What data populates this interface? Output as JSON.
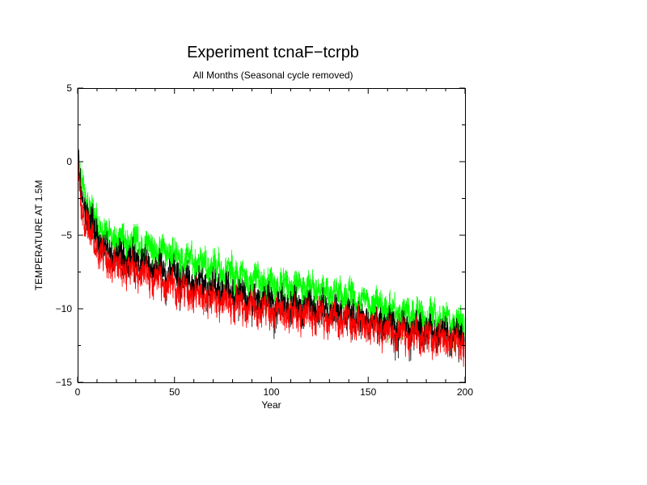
{
  "chart_data": {
    "type": "line",
    "title": "Experiment tcnaF−tcrpb",
    "subtitle": "All Months (Seasonal cycle removed)",
    "xlabel": "Year",
    "ylabel": "TEMPERATURE AT 1.5M",
    "xlim": [
      0,
      200
    ],
    "ylim": [
      -15,
      5
    ],
    "xticks": [
      0,
      50,
      100,
      150,
      200
    ],
    "yticks": [
      5,
      0,
      -5,
      -10,
      -15
    ],
    "grid": false,
    "legend": "none",
    "series": [
      {
        "color": "#00ff00",
        "x": [
          0,
          2,
          5,
          10,
          15,
          20,
          30,
          40,
          50,
          60,
          70,
          80,
          90,
          100,
          110,
          120,
          130,
          140,
          150,
          160,
          170,
          180,
          190,
          200
        ],
        "values": [
          0.3,
          -1.5,
          -2.8,
          -4.0,
          -5.0,
          -5.3,
          -5.5,
          -5.9,
          -6.3,
          -6.8,
          -7.2,
          -7.5,
          -8.0,
          -8.2,
          -8.4,
          -8.6,
          -8.8,
          -9.0,
          -9.5,
          -10.0,
          -10.3,
          -10.5,
          -10.8,
          -11.1
        ]
      },
      {
        "color": "#000000",
        "x": [
          0,
          2,
          5,
          10,
          15,
          20,
          30,
          40,
          50,
          60,
          70,
          80,
          90,
          100,
          110,
          120,
          130,
          140,
          150,
          160,
          170,
          180,
          190,
          200
        ],
        "values": [
          0.0,
          -2.2,
          -3.6,
          -5.0,
          -6.0,
          -6.4,
          -6.7,
          -7.2,
          -7.7,
          -8.2,
          -8.6,
          -8.9,
          -9.3,
          -9.5,
          -9.7,
          -9.9,
          -10.1,
          -10.3,
          -10.7,
          -11.1,
          -11.3,
          -11.5,
          -11.7,
          -11.9
        ]
      },
      {
        "color": "#ff0000",
        "x": [
          0,
          2,
          5,
          10,
          15,
          20,
          30,
          40,
          50,
          60,
          70,
          80,
          90,
          100,
          110,
          120,
          130,
          140,
          150,
          160,
          170,
          180,
          190,
          200
        ],
        "values": [
          -0.6,
          -3.0,
          -4.4,
          -5.8,
          -6.8,
          -7.2,
          -7.5,
          -8.0,
          -8.6,
          -9.1,
          -9.4,
          -9.7,
          -10.0,
          -10.2,
          -10.4,
          -10.5,
          -10.7,
          -10.9,
          -11.2,
          -11.6,
          -11.8,
          -12.0,
          -12.2,
          -12.4
        ]
      }
    ]
  }
}
